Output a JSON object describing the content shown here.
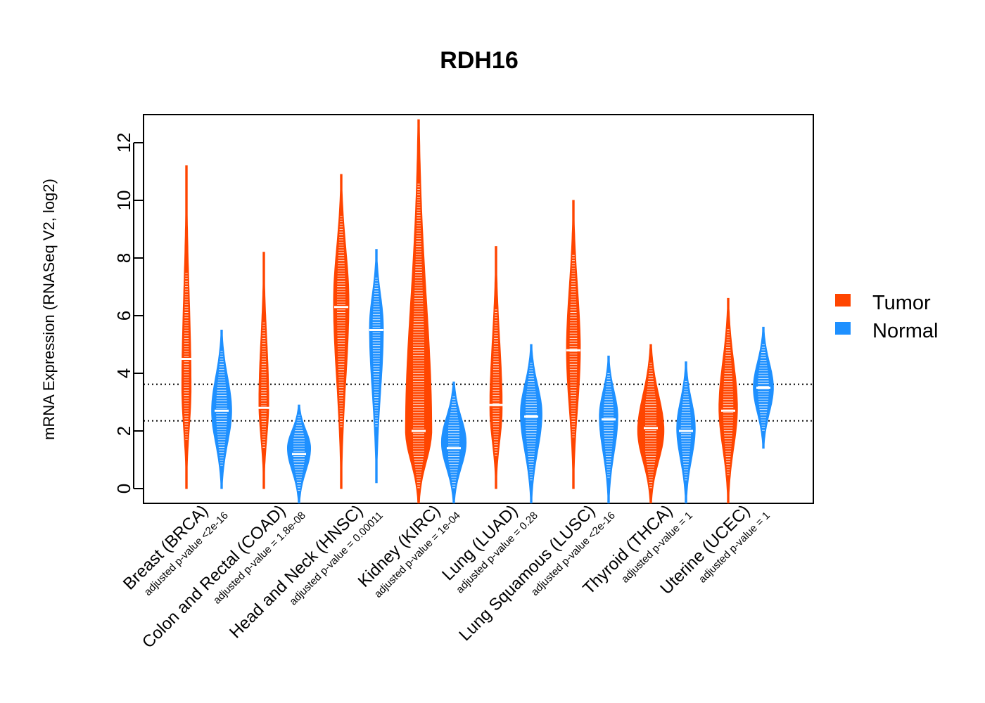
{
  "chart_data": {
    "type": "violin",
    "title": "RDH16",
    "ylabel": "mRNA Expression (RNASeq V2, log2)",
    "xlabel": "",
    "ylim": [
      -0.5,
      12.9
    ],
    "yticks": [
      "0",
      "2",
      "4",
      "6",
      "8",
      "10",
      "12"
    ],
    "ref_lines": [
      2.35,
      3.62
    ],
    "legend": {
      "position": "right",
      "items": [
        {
          "label": "Tumor",
          "color": "#ff4500"
        },
        {
          "label": "Normal",
          "color": "#1e90ff"
        }
      ]
    },
    "categories": [
      {
        "name": "Breast (BRCA)",
        "pvalue": "adjusted p-value <2e-16",
        "tumor": {
          "median": 4.5,
          "min": 0,
          "max": 11.2,
          "peak": 3.5,
          "width": 0.3
        },
        "normal": {
          "median": 2.7,
          "min": 0,
          "max": 5.5,
          "peak": 2.7,
          "width": 0.65
        }
      },
      {
        "name": "Colon and Rectal (COAD)",
        "pvalue": "adjusted p-value = 1.8e-08",
        "tumor": {
          "median": 2.8,
          "min": 0,
          "max": 8.2,
          "peak": 3.0,
          "width": 0.32
        },
        "normal": {
          "median": 1.2,
          "min": -0.5,
          "max": 2.9,
          "peak": 1.4,
          "width": 0.75
        }
      },
      {
        "name": "Head and Neck (HNSC)",
        "pvalue": "adjusted p-value = 0.00011",
        "tumor": {
          "median": 6.3,
          "min": 0,
          "max": 10.9,
          "peak": 6.5,
          "width": 0.5
        },
        "normal": {
          "median": 5.5,
          "min": 0.2,
          "max": 8.3,
          "peak": 5.6,
          "width": 0.45
        }
      },
      {
        "name": "Kidney (KIRC)",
        "pvalue": "adjusted p-value = 1e-04",
        "tumor": {
          "median": 2.0,
          "min": -0.5,
          "max": 12.8,
          "peak": 2.0,
          "width": 0.85
        },
        "normal": {
          "median": 1.4,
          "min": -0.5,
          "max": 3.7,
          "peak": 1.6,
          "width": 0.8
        }
      },
      {
        "name": "Lung (LUAD)",
        "pvalue": "adjusted p-value = 0.28",
        "tumor": {
          "median": 2.9,
          "min": 0,
          "max": 8.4,
          "peak": 2.8,
          "width": 0.4
        },
        "normal": {
          "median": 2.5,
          "min": -0.5,
          "max": 5.0,
          "peak": 2.6,
          "width": 0.7
        }
      },
      {
        "name": "Lung Squamous (LUSC)",
        "pvalue": "adjusted p-value <2e-16",
        "tumor": {
          "median": 4.8,
          "min": 0,
          "max": 10.0,
          "peak": 4.8,
          "width": 0.45
        },
        "normal": {
          "median": 2.4,
          "min": -0.5,
          "max": 4.6,
          "peak": 2.5,
          "width": 0.6
        }
      },
      {
        "name": "Thyroid (THCA)",
        "pvalue": "adjusted p-value = 1",
        "tumor": {
          "median": 2.1,
          "min": -0.5,
          "max": 5.0,
          "peak": 2.0,
          "width": 0.85
        },
        "normal": {
          "median": 2.0,
          "min": -0.5,
          "max": 4.4,
          "peak": 2.1,
          "width": 0.6
        }
      },
      {
        "name": "Uterine (UCEC)",
        "pvalue": "adjusted p-value = 1",
        "tumor": {
          "median": 2.7,
          "min": -0.5,
          "max": 6.6,
          "peak": 2.8,
          "width": 0.6
        },
        "normal": {
          "median": 3.5,
          "min": 1.4,
          "max": 5.6,
          "peak": 3.5,
          "width": 0.65
        }
      }
    ]
  }
}
